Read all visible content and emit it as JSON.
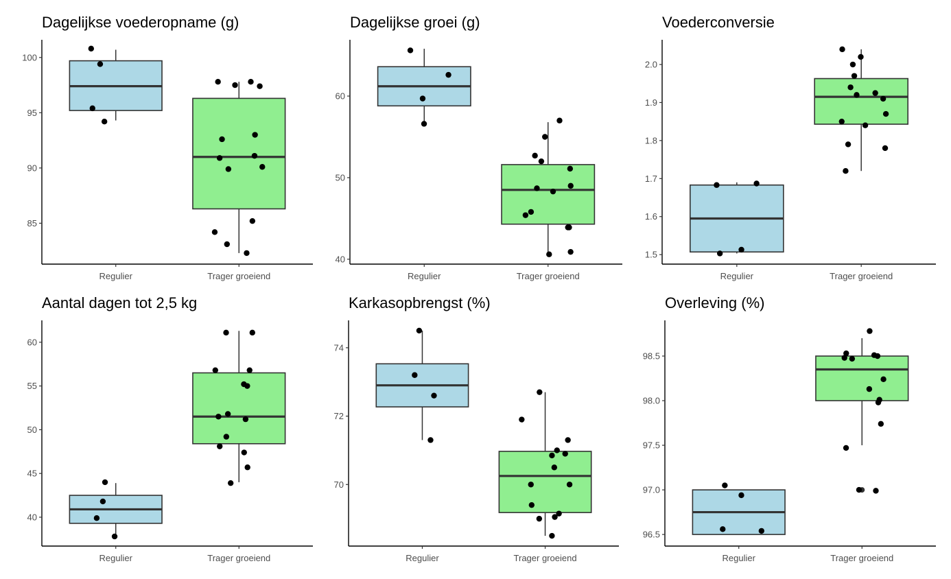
{
  "colors": {
    "Regulier": "#add8e6",
    "Trager groeiend": "#90ee90",
    "box_outline": "#333333",
    "point": "#000000"
  },
  "chart_data": [
    {
      "type": "boxplot",
      "title": "Dagelijkse voederopname (g)",
      "categories": [
        "Regulier",
        "Trager groeiend"
      ],
      "ylim": [
        81.3,
        101.6
      ],
      "yticks": [
        85,
        90,
        95,
        100
      ],
      "ytick_labels": [
        "85",
        "90",
        "95",
        "100"
      ],
      "boxes": [
        {
          "q1": 95.2,
          "median": 97.4,
          "q3": 99.7,
          "whisker_low": 94.3,
          "whisker_high": 100.7,
          "outliers": []
        },
        {
          "q1": 86.3,
          "median": 91.0,
          "q3": 96.3,
          "whisker_low": 82.3,
          "whisker_high": 97.8,
          "outliers": []
        }
      ],
      "points": [
        [
          100.8,
          99.4,
          95.4,
          94.2
        ],
        [
          97.4,
          97.8,
          97.8,
          97.5,
          93.0,
          92.6,
          91.1,
          90.9,
          90.1,
          89.9,
          85.2,
          84.2,
          83.1,
          82.3
        ]
      ]
    },
    {
      "type": "boxplot",
      "title": "Dagelijkse groei (g)",
      "categories": [
        "Regulier",
        "Trager groeiend"
      ],
      "ylim": [
        39.4,
        66.9
      ],
      "yticks": [
        40,
        50,
        60
      ],
      "ytick_labels": [
        "40",
        "50",
        "60"
      ],
      "boxes": [
        {
          "q1": 58.8,
          "median": 61.2,
          "q3": 63.6,
          "whisker_low": 56.7,
          "whisker_high": 65.8,
          "outliers": []
        },
        {
          "q1": 44.3,
          "median": 48.5,
          "q3": 51.6,
          "whisker_low": 40.6,
          "whisker_high": 56.8,
          "outliers": []
        }
      ],
      "points": [
        [
          65.6,
          62.6,
          59.7,
          56.6
        ],
        [
          57.0,
          55.0,
          52.7,
          52.0,
          51.1,
          49.0,
          48.7,
          48.3,
          45.8,
          45.4,
          43.9,
          43.9,
          40.9,
          40.6
        ]
      ]
    },
    {
      "type": "boxplot",
      "title": "Voederconversie",
      "categories": [
        "Regulier",
        "Trager groeiend"
      ],
      "ylim": [
        1.475,
        2.065
      ],
      "yticks": [
        1.5,
        1.6,
        1.7,
        1.8,
        1.9,
        2.0
      ],
      "ytick_labels": [
        "1.5",
        "1.6",
        "1.7",
        "1.8",
        "1.9",
        "2.0"
      ],
      "boxes": [
        {
          "q1": 1.507,
          "median": 1.595,
          "q3": 1.683,
          "whisker_low": 1.503,
          "whisker_high": 1.69,
          "outliers": []
        },
        {
          "q1": 1.843,
          "median": 1.915,
          "q3": 1.963,
          "whisker_low": 1.72,
          "whisker_high": 2.04,
          "outliers": []
        }
      ],
      "points": [
        [
          1.683,
          1.687,
          1.513,
          1.503
        ],
        [
          2.04,
          2.02,
          2.0,
          1.97,
          1.94,
          1.92,
          1.925,
          1.91,
          1.87,
          1.85,
          1.84,
          1.79,
          1.78,
          1.72
        ]
      ]
    },
    {
      "type": "boxplot",
      "title": "Aantal dagen tot 2,5 kg",
      "categories": [
        "Regulier",
        "Trager groeiend"
      ],
      "ylim": [
        36.7,
        62.5
      ],
      "yticks": [
        40,
        45,
        50,
        55,
        60
      ],
      "ytick_labels": [
        "40",
        "45",
        "50",
        "55",
        "60"
      ],
      "boxes": [
        {
          "q1": 39.3,
          "median": 40.9,
          "q3": 42.5,
          "whisker_low": 38.0,
          "whisker_high": 43.9,
          "outliers": []
        },
        {
          "q1": 48.4,
          "median": 51.5,
          "q3": 56.5,
          "whisker_low": 44.0,
          "whisker_high": 61.3,
          "outliers": []
        }
      ],
      "points": [
        [
          44.0,
          41.8,
          39.9,
          37.8
        ],
        [
          61.1,
          61.1,
          56.8,
          56.8,
          55.2,
          55.0,
          51.8,
          51.5,
          51.2,
          49.2,
          48.1,
          47.4,
          45.7,
          43.9
        ]
      ]
    },
    {
      "type": "boxplot",
      "title": "Karkasopbrengst (%)",
      "categories": [
        "Regulier",
        "Trager groeiend"
      ],
      "ylim": [
        68.2,
        74.8
      ],
      "yticks": [
        70,
        72,
        74
      ],
      "ytick_labels": [
        "70",
        "72",
        "74"
      ],
      "boxes": [
        {
          "q1": 72.27,
          "median": 72.9,
          "q3": 73.53,
          "whisker_low": 71.3,
          "whisker_high": 74.5,
          "outliers": []
        },
        {
          "q1": 69.18,
          "median": 70.25,
          "q3": 70.97,
          "whisker_low": 68.5,
          "whisker_high": 72.7,
          "outliers": []
        }
      ],
      "points": [
        [
          74.5,
          73.2,
          72.6,
          71.3
        ],
        [
          72.7,
          71.9,
          71.3,
          71.0,
          70.85,
          70.9,
          70.5,
          70.0,
          70.0,
          69.4,
          69.15,
          69.05,
          69.0,
          68.5
        ]
      ]
    },
    {
      "type": "boxplot",
      "title": "Overleving (%)",
      "categories": [
        "Regulier",
        "Trager groeiend"
      ],
      "ylim": [
        96.37,
        98.9
      ],
      "yticks": [
        96.5,
        97.0,
        97.5,
        98.0,
        98.5
      ],
      "ytick_labels": [
        "96.5",
        "97.0",
        "97.5",
        "98.0",
        "98.5"
      ],
      "boxes": [
        {
          "q1": 96.5,
          "median": 96.75,
          "q3": 97.0,
          "whisker_low": 96.5,
          "whisker_high": 97.0,
          "outliers": []
        },
        {
          "q1": 98.0,
          "median": 98.35,
          "q3": 98.5,
          "whisker_low": 97.5,
          "whisker_high": 98.7,
          "outliers": [
            97.0
          ]
        }
      ],
      "points": [
        [
          97.05,
          96.94,
          96.56,
          96.54
        ],
        [
          98.78,
          98.53,
          98.5,
          98.51,
          98.48,
          98.47,
          98.24,
          98.13,
          98.01,
          97.98,
          97.74,
          97.47,
          97.0,
          96.99
        ]
      ]
    }
  ]
}
